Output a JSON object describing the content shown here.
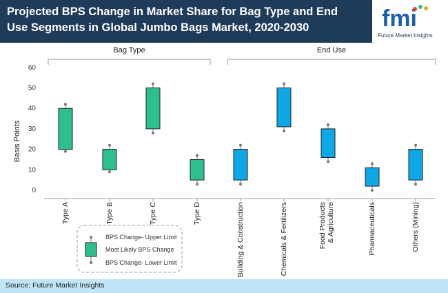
{
  "header": {
    "title": "Projected BPS Change in Market Share for Bag Type and End Use Segments in Global Jumbo Bags Market, 2020-2030",
    "logo_text": "fmi",
    "logo_sub": "Future Market Insights"
  },
  "footer": {
    "source": "Source: Future Market Insights"
  },
  "colors": {
    "header_bg": "#1f3b5a",
    "bag_type": "#2fbf8f",
    "end_use": "#0fa7e6",
    "footer_bg": "#bfe6f7"
  },
  "chart_data": {
    "type": "box",
    "title": "",
    "ylabel": "Basis Points",
    "ylim": [
      0,
      60
    ],
    "yticks": [
      0,
      10,
      20,
      30,
      40,
      50,
      60
    ],
    "groups": [
      {
        "label": "Bag Type",
        "categories": [
          0,
          1,
          2,
          3
        ]
      },
      {
        "label": "End Use",
        "categories": [
          4,
          5,
          6,
          7,
          8
        ]
      }
    ],
    "categories": [
      "Type A",
      "Type B",
      "Type C",
      "Type D",
      "Building & Construction",
      "Chemicals & Fertilizers",
      "Food Products & Agriculture",
      "Pharmaceuticals",
      "Others (Mining)"
    ],
    "series": [
      {
        "category": "Type A",
        "upper": 42,
        "box_high": 40,
        "box_low": 20,
        "lower": 19
      },
      {
        "category": "Type B",
        "upper": 22,
        "box_high": 20,
        "box_low": 10,
        "lower": 9
      },
      {
        "category": "Type C",
        "upper": 52,
        "box_high": 50,
        "box_low": 30,
        "lower": 28
      },
      {
        "category": "Type D",
        "upper": 17,
        "box_high": 15,
        "box_low": 5,
        "lower": 3
      },
      {
        "category": "Building & Construction",
        "upper": 22,
        "box_high": 20,
        "box_low": 5,
        "lower": 3
      },
      {
        "category": "Chemicals & Fertilizers",
        "upper": 52,
        "box_high": 50,
        "box_low": 31,
        "lower": 29
      },
      {
        "category": "Food Products & Agriculture",
        "upper": 32,
        "box_high": 30,
        "box_low": 16,
        "lower": 14
      },
      {
        "category": "Pharmaceuticals",
        "upper": 13,
        "box_high": 11,
        "box_low": 2,
        "lower": 0
      },
      {
        "category": "Others (Mining)",
        "upper": 22,
        "box_high": 20,
        "box_low": 5,
        "lower": 3
      }
    ],
    "legend": {
      "upper": "BPS Change- Upper Limit",
      "mid": "Most Likely BPS Change",
      "lower": "BPS Change- Lower Limit"
    }
  }
}
